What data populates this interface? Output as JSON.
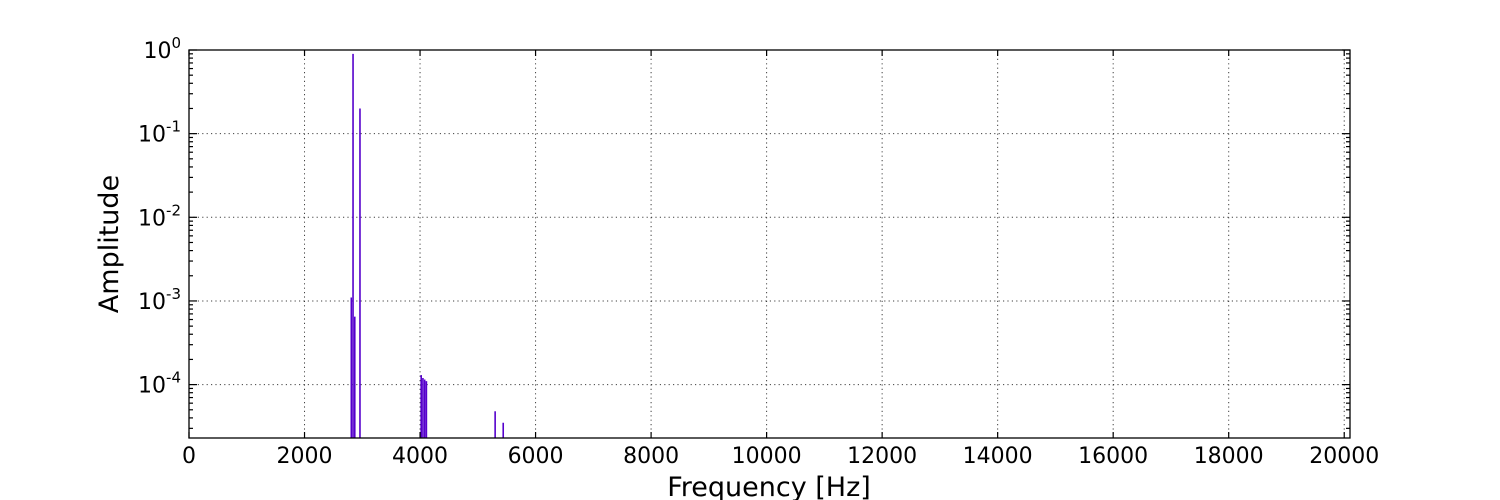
{
  "chart_data": {
    "type": "bar",
    "title": "",
    "xlabel": "Frequency [Hz]",
    "ylabel": "Amplitude",
    "xlim": [
      0,
      20100
    ],
    "ylim": [
      2.3e-05,
      1.0
    ],
    "yscale": "log",
    "grid": true,
    "color": "#5500cc",
    "x_ticks": [
      0,
      2000,
      4000,
      6000,
      8000,
      10000,
      12000,
      14000,
      16000,
      18000,
      20000
    ],
    "y_ticks": [
      {
        "base": "10",
        "exp": "-4",
        "value": 0.0001
      },
      {
        "base": "10",
        "exp": "-3",
        "value": 0.001
      },
      {
        "base": "10",
        "exp": "-2",
        "value": 0.01
      },
      {
        "base": "10",
        "exp": "-1",
        "value": 0.1
      },
      {
        "base": "10",
        "exp": "0",
        "value": 1
      }
    ],
    "series": [
      {
        "x": [
          2810,
          2840,
          2870,
          2960,
          4020,
          4050,
          4080,
          4110,
          5300,
          5440
        ],
        "values": [
          0.0011,
          0.9,
          0.00065,
          0.2,
          0.00013,
          0.00012,
          0.000115,
          0.00011,
          4.8e-05,
          3.5e-05
        ]
      }
    ]
  }
}
